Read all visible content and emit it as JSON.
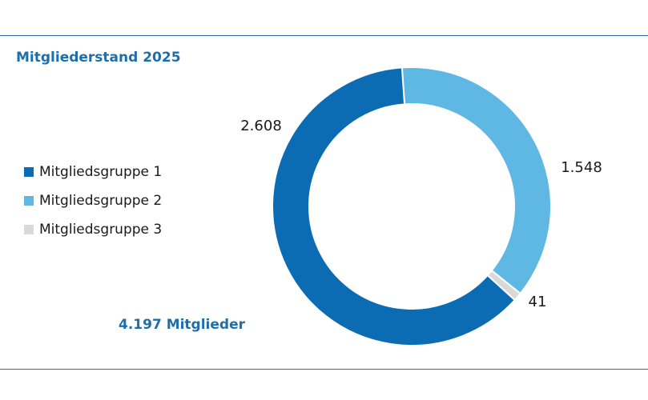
{
  "chart_data": {
    "type": "pie",
    "title": "Mitgliederstand 2025",
    "donut": true,
    "categories": [
      "Mitgliedsgruppe 1",
      "Mitgliedsgruppe 2",
      "Mitgliedsgruppe 3"
    ],
    "values": [
      2608,
      1548,
      41
    ],
    "value_labels": [
      "2.608",
      "1.548",
      "41"
    ],
    "colors": [
      "#0b6cb3",
      "#5fb8e4",
      "#d9d9d9"
    ],
    "total_label": "4.197 Mitglieder",
    "legend_position": "left"
  }
}
